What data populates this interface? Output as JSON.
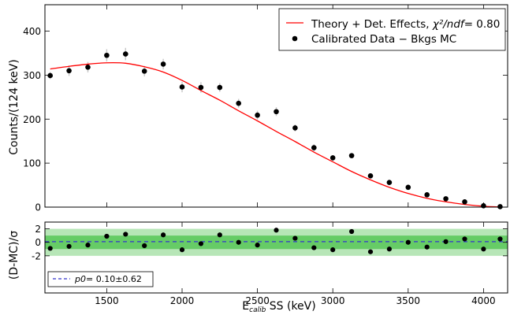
{
  "chart_data": [
    {
      "type": "scatter",
      "panel": "main",
      "ylabel": "Counts/(124 keV)",
      "xlim": [
        1090,
        4160
      ],
      "ylim": [
        0,
        460
      ],
      "xticks": [
        1500,
        2000,
        2500,
        3000,
        3500,
        4000
      ],
      "yticks": [
        0,
        100,
        200,
        300,
        400
      ],
      "legend_position": "top-right",
      "legend": [
        {
          "label_pre": "Theory + Det. Effects, ",
          "label_math": "χ²/ndf",
          "label_post": "= 0.80",
          "color": "#ff0000",
          "kind": "line"
        },
        {
          "label": "Calibrated Data − Bkgs MC",
          "color": "#000000",
          "kind": "marker"
        }
      ],
      "data_series": {
        "name": "Calibrated Data − Bkgs MC",
        "x": [
          1125,
          1250,
          1375,
          1500,
          1625,
          1750,
          1875,
          2000,
          2125,
          2250,
          2375,
          2500,
          2625,
          2750,
          2875,
          3000,
          3125,
          3250,
          3375,
          3500,
          3625,
          3750,
          3875,
          4000,
          4110
        ],
        "y": [
          299,
          310,
          318,
          345,
          348,
          309,
          325,
          273,
          272,
          272,
          236,
          209,
          217,
          180,
          135,
          112,
          117,
          71,
          56,
          45,
          28,
          19,
          12,
          3,
          1
        ],
        "err": [
          8,
          12,
          12,
          14,
          14,
          12,
          12,
          12,
          12,
          10,
          10,
          10,
          10,
          8,
          8,
          6,
          6,
          6,
          6,
          4,
          4,
          4,
          4,
          2,
          2
        ]
      },
      "theory_series": {
        "name": "Theory + Det. Effects",
        "x": [
          1125,
          1250,
          1375,
          1500,
          1625,
          1750,
          1875,
          2000,
          2125,
          2250,
          2375,
          2500,
          2625,
          2750,
          2875,
          3000,
          3125,
          3250,
          3375,
          3500,
          3625,
          3750,
          3875,
          4000,
          4125
        ],
        "y": [
          314,
          320,
          325,
          328,
          327,
          319,
          307,
          288,
          265,
          243,
          219,
          196,
          172,
          149,
          125,
          103,
          81,
          62,
          45,
          31,
          20,
          12,
          6,
          2,
          0
        ],
        "color": "#ff0000"
      }
    },
    {
      "type": "scatter",
      "panel": "residual",
      "xlabel_main": "E",
      "xlabel_sub": "calib",
      "xlabel_rest": " SS (keV)",
      "ylabel": "(D-MC)/σ",
      "xlim": [
        1090,
        4160
      ],
      "ylim": [
        -7.5,
        3
      ],
      "xticks": [
        1500,
        2000,
        2500,
        3000,
        3500,
        4000
      ],
      "yticks": [
        -2,
        0,
        2
      ],
      "band_1sigma_color": "#66cc66",
      "band_2sigma_color": "#b7e6b7",
      "fit_line": {
        "label_math": "p0",
        "label_post": "= 0.10±0.62",
        "value": 0.1,
        "color": "#3333cc"
      },
      "x": [
        1125,
        1250,
        1375,
        1500,
        1625,
        1750,
        1875,
        2000,
        2125,
        2250,
        2375,
        2500,
        2625,
        2750,
        2875,
        3000,
        3125,
        3250,
        3375,
        3500,
        3625,
        3750,
        3875,
        4000,
        4110
      ],
      "y": [
        -0.9,
        -0.6,
        -0.4,
        0.9,
        1.2,
        -0.5,
        1.1,
        -1.1,
        -0.2,
        1.1,
        0.0,
        -0.4,
        1.8,
        0.6,
        -0.8,
        -1.1,
        1.6,
        -1.4,
        -1.0,
        0.0,
        -0.7,
        0.1,
        0.5,
        -1.0,
        0.5
      ]
    }
  ]
}
